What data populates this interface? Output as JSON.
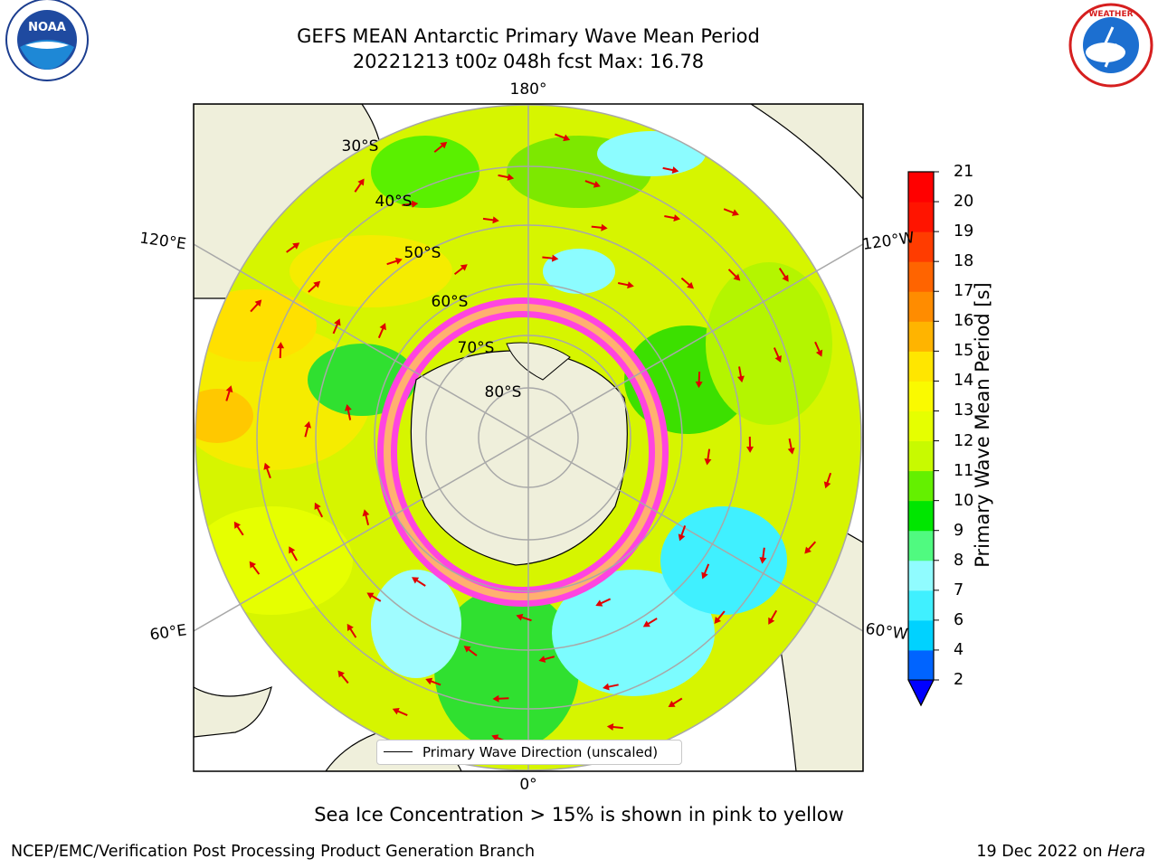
{
  "title": "GEFS MEAN Antarctic Primary Wave Mean Period",
  "subtitle": "20221213 t00z 048h fcst   Max: 16.78",
  "legend_label": "Primary Wave Direction (unscaled)",
  "note": "Sea Ice Concentration > 15% is shown in pink to yellow",
  "footer": {
    "left": "NCEP/EMC/Verification Post Processing Product Generation Branch",
    "date": "19 Dec 2022 on",
    "machine": "Hera"
  },
  "logos": {
    "left": "NOAA",
    "right": "NATIONAL WEATHER SERVICE"
  },
  "colorbar": {
    "label": "Primary Wave Mean Period [s]",
    "ticks": [
      "2",
      "4",
      "6",
      "7",
      "8",
      "9",
      "10",
      "11",
      "12",
      "13",
      "14",
      "15",
      "16",
      "17",
      "18",
      "19",
      "20",
      "21"
    ],
    "colors": [
      "#0064ff",
      "#00d2ff",
      "#40f0ff",
      "#90fcff",
      "#50fa80",
      "#00e600",
      "#64f000",
      "#c8fa00",
      "#e6ff00",
      "#fafa00",
      "#ffe600",
      "#ffb400",
      "#ff8c00",
      "#ff6400",
      "#ff3c00",
      "#ff1400",
      "#ff0000"
    ],
    "extend_color": "#0000ff"
  },
  "map_labels": {
    "lon": [
      "180°",
      "120°E",
      "120°W",
      "60°E",
      "60°W",
      "0°"
    ],
    "lat": [
      "30°S",
      "40°S",
      "50°S",
      "60°S",
      "70°S",
      "80°S"
    ]
  }
}
